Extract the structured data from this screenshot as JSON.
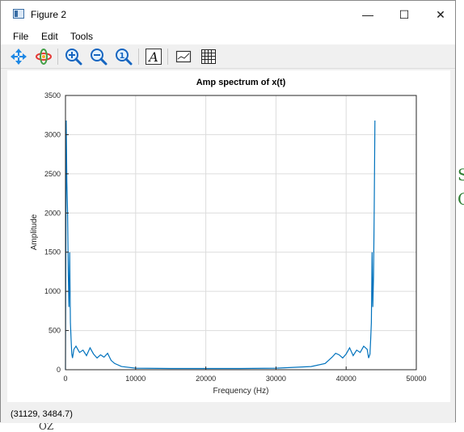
{
  "window": {
    "title": "Figure 2",
    "controls": {
      "minimize": "—",
      "maximize": "☐",
      "close": "✕"
    }
  },
  "menu": [
    "File",
    "Edit",
    "Tools"
  ],
  "toolbar": {
    "tools": [
      "pan-icon",
      "rotate-icon",
      "zoom-in-icon",
      "zoom-out-icon",
      "zoom-reset-icon",
      "text-icon",
      "axes-box-icon",
      "grid-icon"
    ]
  },
  "status": {
    "coords": "(31129, 3484.7)"
  },
  "colors": {
    "series": "#0072bd",
    "grid": "#dcdcdc"
  },
  "background_text": {
    "right_top": "S",
    "right_bottom": "C",
    "bottom": "OZ"
  },
  "chart_data": {
    "type": "line",
    "title": "Amp spectrum of x(t)",
    "xlabel": "Frequency (Hz)",
    "ylabel": "Amplitude",
    "xlim": [
      0,
      50000
    ],
    "ylim": [
      0,
      3500
    ],
    "xticks": [
      0,
      10000,
      20000,
      30000,
      40000,
      50000
    ],
    "yticks": [
      0,
      500,
      1000,
      1500,
      2000,
      2500,
      3000,
      3500
    ],
    "grid": true,
    "series": [
      {
        "x": [
          0,
          100,
          200,
          300,
          400,
          500,
          600,
          700,
          800,
          900,
          1000,
          1200,
          1500,
          2000,
          2500,
          3000,
          3500,
          4000,
          4500,
          5000,
          5500,
          6000,
          6500,
          7000,
          8000,
          10000,
          15000,
          20000,
          25000,
          30000,
          35000,
          37000,
          37500,
          38000,
          38500,
          39000,
          39500,
          40000,
          40500,
          41000,
          41500,
          42000,
          42500,
          43000,
          43200,
          43400,
          43500,
          43600,
          43700,
          43800,
          43900,
          44000,
          44100
        ],
        "y": [
          0,
          3180,
          2400,
          2000,
          1200,
          800,
          1500,
          600,
          400,
          200,
          150,
          260,
          300,
          220,
          250,
          180,
          280,
          200,
          150,
          190,
          160,
          210,
          120,
          80,
          40,
          20,
          15,
          15,
          15,
          20,
          40,
          80,
          120,
          160,
          210,
          190,
          150,
          200,
          280,
          180,
          250,
          220,
          300,
          260,
          150,
          200,
          400,
          600,
          1500,
          800,
          1200,
          2000,
          3180
        ]
      }
    ]
  }
}
